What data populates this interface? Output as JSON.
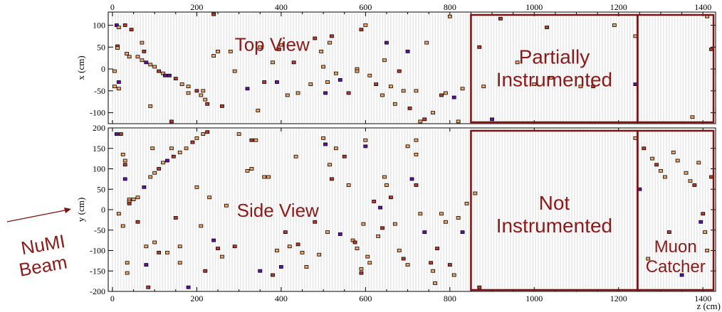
{
  "chart_data": {
    "type": "scatter",
    "title": "",
    "x_axis": {
      "label": "z (cm)",
      "range": [
        -10,
        1430
      ],
      "ticks": [
        0,
        200,
        400,
        600,
        800,
        1000,
        1200,
        1400
      ],
      "tick_labels": [
        "0",
        "200",
        "400",
        "600",
        "800",
        "1000",
        "1200",
        "1400"
      ]
    },
    "panels": [
      {
        "id": "top",
        "view_label": "Top View",
        "ylabel": "x (cm)",
        "ylim": [
          -125,
          130
        ],
        "yticks": [
          -100,
          -50,
          0,
          50,
          100
        ],
        "ytick_labels": [
          "-100",
          "-50",
          "0",
          "50",
          "100"
        ],
        "hits": [
          [
            10,
            100
          ],
          [
            12,
            52
          ],
          [
            12,
            48
          ],
          [
            15,
            95
          ],
          [
            30,
            100
          ],
          [
            34,
            35
          ],
          [
            40,
            28
          ],
          [
            45,
            90
          ],
          [
            60,
            28
          ],
          [
            70,
            20
          ],
          [
            80,
            15
          ],
          [
            90,
            10
          ],
          [
            100,
            5
          ],
          [
            110,
            -5
          ],
          [
            120,
            -10
          ],
          [
            135,
            -15
          ],
          [
            150,
            -22
          ],
          [
            165,
            -35
          ],
          [
            180,
            -40
          ],
          [
            200,
            -50
          ],
          [
            210,
            -60
          ],
          [
            220,
            -70
          ],
          [
            225,
            -80
          ],
          [
            5,
            -5
          ],
          [
            5,
            -40
          ],
          [
            15,
            -30
          ],
          [
            15,
            -45
          ],
          [
            70,
            60
          ],
          [
            75,
            40
          ],
          [
            90,
            -85
          ],
          [
            125,
            -15
          ],
          [
            140,
            -120
          ],
          [
            180,
            -55
          ],
          [
            215,
            -50
          ],
          [
            240,
            125
          ],
          [
            240,
            30
          ],
          [
            250,
            40
          ],
          [
            260,
            -85
          ],
          [
            280,
            40
          ],
          [
            290,
            -5
          ],
          [
            320,
            -45
          ],
          [
            345,
            -95
          ],
          [
            350,
            50
          ],
          [
            360,
            -30
          ],
          [
            380,
            15
          ],
          [
            390,
            -30
          ],
          [
            395,
            45
          ],
          [
            400,
            55
          ],
          [
            415,
            -60
          ],
          [
            430,
            15
          ],
          [
            440,
            -55
          ],
          [
            470,
            -35
          ],
          [
            480,
            70
          ],
          [
            495,
            40
          ],
          [
            500,
            5
          ],
          [
            505,
            -55
          ],
          [
            510,
            -30
          ],
          [
            515,
            60
          ],
          [
            520,
            75
          ],
          [
            530,
            -10
          ],
          [
            540,
            -25
          ],
          [
            560,
            -55
          ],
          [
            580,
            0
          ],
          [
            580,
            -5
          ],
          [
            590,
            90
          ],
          [
            600,
            100
          ],
          [
            610,
            -15
          ],
          [
            625,
            -35
          ],
          [
            640,
            -60
          ],
          [
            645,
            20
          ],
          [
            650,
            60
          ],
          [
            660,
            -40
          ],
          [
            670,
            -80
          ],
          [
            680,
            -5
          ],
          [
            690,
            -50
          ],
          [
            700,
            40
          ],
          [
            705,
            -90
          ],
          [
            720,
            -50
          ],
          [
            730,
            -120
          ],
          [
            740,
            -115
          ],
          [
            745,
            60
          ],
          [
            760,
            -100
          ],
          [
            780,
            -60
          ],
          [
            790,
            -55
          ],
          [
            800,
            120
          ],
          [
            810,
            -65
          ],
          [
            820,
            -120
          ],
          [
            830,
            -45
          ],
          [
            870,
            50
          ],
          [
            880,
            -40
          ],
          [
            900,
            -115
          ],
          [
            920,
            115
          ],
          [
            960,
            15
          ],
          [
            1000,
            -35
          ],
          [
            1030,
            95
          ],
          [
            1040,
            -20
          ],
          [
            1110,
            -40
          ],
          [
            1140,
            -40
          ],
          [
            1190,
            100
          ],
          [
            1240,
            75
          ],
          [
            1240,
            -35
          ],
          [
            1375,
            -110
          ],
          [
            1410,
            120
          ],
          [
            1420,
            45
          ]
        ]
      },
      {
        "id": "side",
        "view_label": "Side View",
        "ylabel": "y (cm)",
        "ylim": [
          -200,
          200
        ],
        "yticks": [
          -200,
          -150,
          -100,
          -50,
          0,
          50,
          100,
          150,
          200
        ],
        "ytick_labels": [
          "-200",
          "-150",
          "-100",
          "-50",
          "0",
          "50",
          "100",
          "150",
          "200"
        ],
        "hits": [
          [
            10,
            185
          ],
          [
            20,
            185
          ],
          [
            25,
            135
          ],
          [
            30,
            120
          ],
          [
            30,
            110
          ],
          [
            40,
            25
          ],
          [
            40,
            20
          ],
          [
            40,
            15
          ],
          [
            50,
            25
          ],
          [
            60,
            30
          ],
          [
            75,
            55
          ],
          [
            90,
            80
          ],
          [
            100,
            90
          ],
          [
            110,
            100
          ],
          [
            120,
            115
          ],
          [
            130,
            120
          ],
          [
            145,
            130
          ],
          [
            160,
            140
          ],
          [
            175,
            150
          ],
          [
            190,
            165
          ],
          [
            200,
            175
          ],
          [
            215,
            185
          ],
          [
            225,
            190
          ],
          [
            15,
            -10
          ],
          [
            25,
            -40
          ],
          [
            30,
            75
          ],
          [
            35,
            -130
          ],
          [
            35,
            -155
          ],
          [
            60,
            -30
          ],
          [
            80,
            -90
          ],
          [
            80,
            -135
          ],
          [
            85,
            -190
          ],
          [
            95,
            150
          ],
          [
            100,
            -80
          ],
          [
            110,
            -105
          ],
          [
            130,
            -105
          ],
          [
            140,
            150
          ],
          [
            150,
            -20
          ],
          [
            160,
            -90
          ],
          [
            160,
            -130
          ],
          [
            180,
            -190
          ],
          [
            200,
            55
          ],
          [
            210,
            -40
          ],
          [
            220,
            -150
          ],
          [
            230,
            30
          ],
          [
            240,
            -75
          ],
          [
            250,
            -95
          ],
          [
            260,
            -115
          ],
          [
            270,
            10
          ],
          [
            290,
            -90
          ],
          [
            300,
            185
          ],
          [
            320,
            95
          ],
          [
            330,
            170
          ],
          [
            330,
            100
          ],
          [
            340,
            170
          ],
          [
            350,
            -150
          ],
          [
            360,
            80
          ],
          [
            370,
            80
          ],
          [
            380,
            -160
          ],
          [
            390,
            -100
          ],
          [
            400,
            -140
          ],
          [
            410,
            -55
          ],
          [
            420,
            -90
          ],
          [
            435,
            130
          ],
          [
            440,
            -85
          ],
          [
            450,
            -105
          ],
          [
            460,
            -140
          ],
          [
            480,
            -30
          ],
          [
            490,
            -110
          ],
          [
            500,
            175
          ],
          [
            505,
            160
          ],
          [
            510,
            -55
          ],
          [
            515,
            110
          ],
          [
            520,
            75
          ],
          [
            530,
            150
          ],
          [
            540,
            -60
          ],
          [
            550,
            130
          ],
          [
            560,
            60
          ],
          [
            570,
            -75
          ],
          [
            575,
            -80
          ],
          [
            580,
            -95
          ],
          [
            590,
            -145
          ],
          [
            590,
            -155
          ],
          [
            595,
            -35
          ],
          [
            600,
            170
          ],
          [
            600,
            155
          ],
          [
            605,
            -115
          ],
          [
            610,
            -130
          ],
          [
            620,
            20
          ],
          [
            630,
            -65
          ],
          [
            635,
            5
          ],
          [
            640,
            -45
          ],
          [
            645,
            80
          ],
          [
            650,
            60
          ],
          [
            660,
            30
          ],
          [
            670,
            -35
          ],
          [
            680,
            -100
          ],
          [
            690,
            -120
          ],
          [
            700,
            -135
          ],
          [
            700,
            155
          ],
          [
            710,
            75
          ],
          [
            720,
            170
          ],
          [
            720,
            135
          ],
          [
            720,
            60
          ],
          [
            730,
            -10
          ],
          [
            740,
            -55
          ],
          [
            755,
            -130
          ],
          [
            760,
            -150
          ],
          [
            765,
            -180
          ],
          [
            770,
            -95
          ],
          [
            780,
            -10
          ],
          [
            790,
            -30
          ],
          [
            800,
            -135
          ],
          [
            810,
            -160
          ],
          [
            820,
            -20
          ],
          [
            830,
            -55
          ],
          [
            840,
            15
          ],
          [
            860,
            40
          ],
          [
            870,
            -190
          ],
          [
            1240,
            175
          ],
          [
            1250,
            50
          ],
          [
            1260,
            150
          ],
          [
            1270,
            -120
          ],
          [
            1280,
            125
          ],
          [
            1290,
            110
          ],
          [
            1300,
            95
          ],
          [
            1310,
            80
          ],
          [
            1320,
            -55
          ],
          [
            1330,
            140
          ],
          [
            1340,
            120
          ],
          [
            1350,
            -160
          ],
          [
            1360,
            90
          ],
          [
            1370,
            70
          ],
          [
            1380,
            60
          ],
          [
            1390,
            115
          ],
          [
            1395,
            -30
          ],
          [
            1400,
            -10
          ],
          [
            1405,
            -55
          ],
          [
            1410,
            -100
          ],
          [
            1420,
            80
          ]
        ]
      }
    ],
    "regions": [
      {
        "label_lines": [
          "Partially",
          "Instrumented"
        ],
        "panel": "top",
        "z_range": [
          850,
          1245
        ]
      },
      {
        "label_lines": [
          "Not",
          "Instrumented"
        ],
        "panel": "side",
        "z_range": [
          850,
          1245
        ]
      },
      {
        "label_lines": [],
        "panel": "top",
        "z_range": [
          1245,
          1425
        ]
      },
      {
        "label_lines": [
          "Muon",
          "Catcher"
        ],
        "panel": "side",
        "z_range": [
          1245,
          1425
        ]
      }
    ],
    "annotations": {
      "beam_label_lines": [
        "NuMI",
        "Beam"
      ]
    },
    "colors": {
      "region_outline": "#7a1414",
      "overlay_text": "#8b1a1a",
      "hit_low": "#f4a460",
      "hit_mid": "#c0392b",
      "hit_high": "#6a0dad"
    }
  }
}
